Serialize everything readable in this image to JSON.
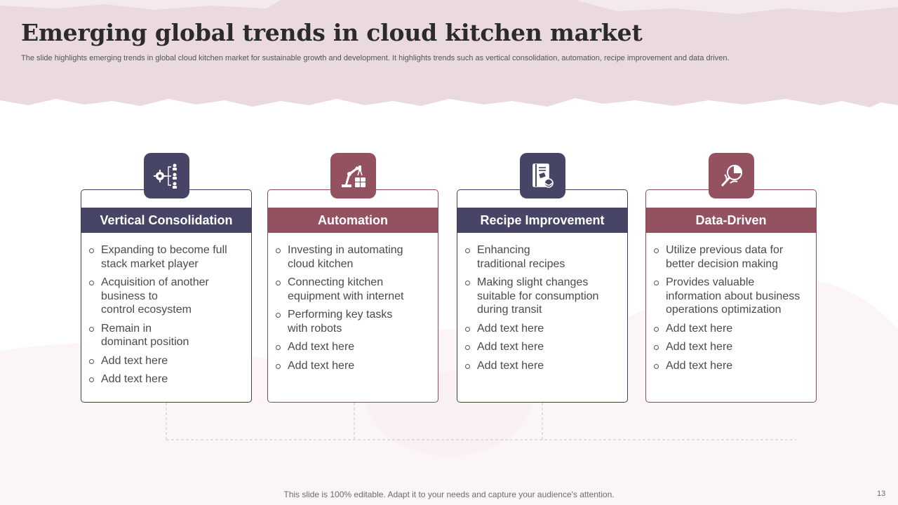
{
  "slide": {
    "title": "Emerging global trends in cloud kitchen market",
    "subtitle": "The slide highlights emerging trends in global cloud kitchen market for sustainable growth and development. It highlights trends such as vertical consolidation, automation, recipe improvement and data driven.",
    "footer": "This slide is 100% editable. Adapt it to your needs and capture your audience's attention.",
    "page_number": "13"
  },
  "colors": {
    "dark": "#464565",
    "rose": "#94515f",
    "banner": "#ead9df"
  },
  "cards": [
    {
      "heading": "Vertical Consolidation",
      "icon": "org-chart-gear-icon",
      "bullets": [
        "Expanding to become full\nstack market player",
        "Acquisition of another\nbusiness to\ncontrol ecosystem",
        "Remain in\ndominant position",
        "Add text here",
        "Add text here"
      ]
    },
    {
      "heading": "Automation",
      "icon": "robot-arm-icon",
      "bullets": [
        "Investing  in automating\ncloud kitchen",
        "Connecting kitchen\nequipment with internet",
        "Performing key tasks\nwith robots",
        "Add text here",
        "Add text here"
      ]
    },
    {
      "heading": "Recipe Improvement",
      "icon": "recipe-book-icon",
      "bullets": [
        "Enhancing\ntraditional recipes",
        "Making slight changes\nsuitable for consumption\nduring transit",
        "Add text here",
        "Add text here",
        "Add text here"
      ]
    },
    {
      "heading": "Data-Driven",
      "icon": "data-analytics-icon",
      "bullets": [
        "Utilize previous data for\nbetter decision making",
        "Provides valuable\ninformation about business\noperations optimization",
        "Add text here",
        "Add text here",
        "Add text here"
      ]
    }
  ]
}
